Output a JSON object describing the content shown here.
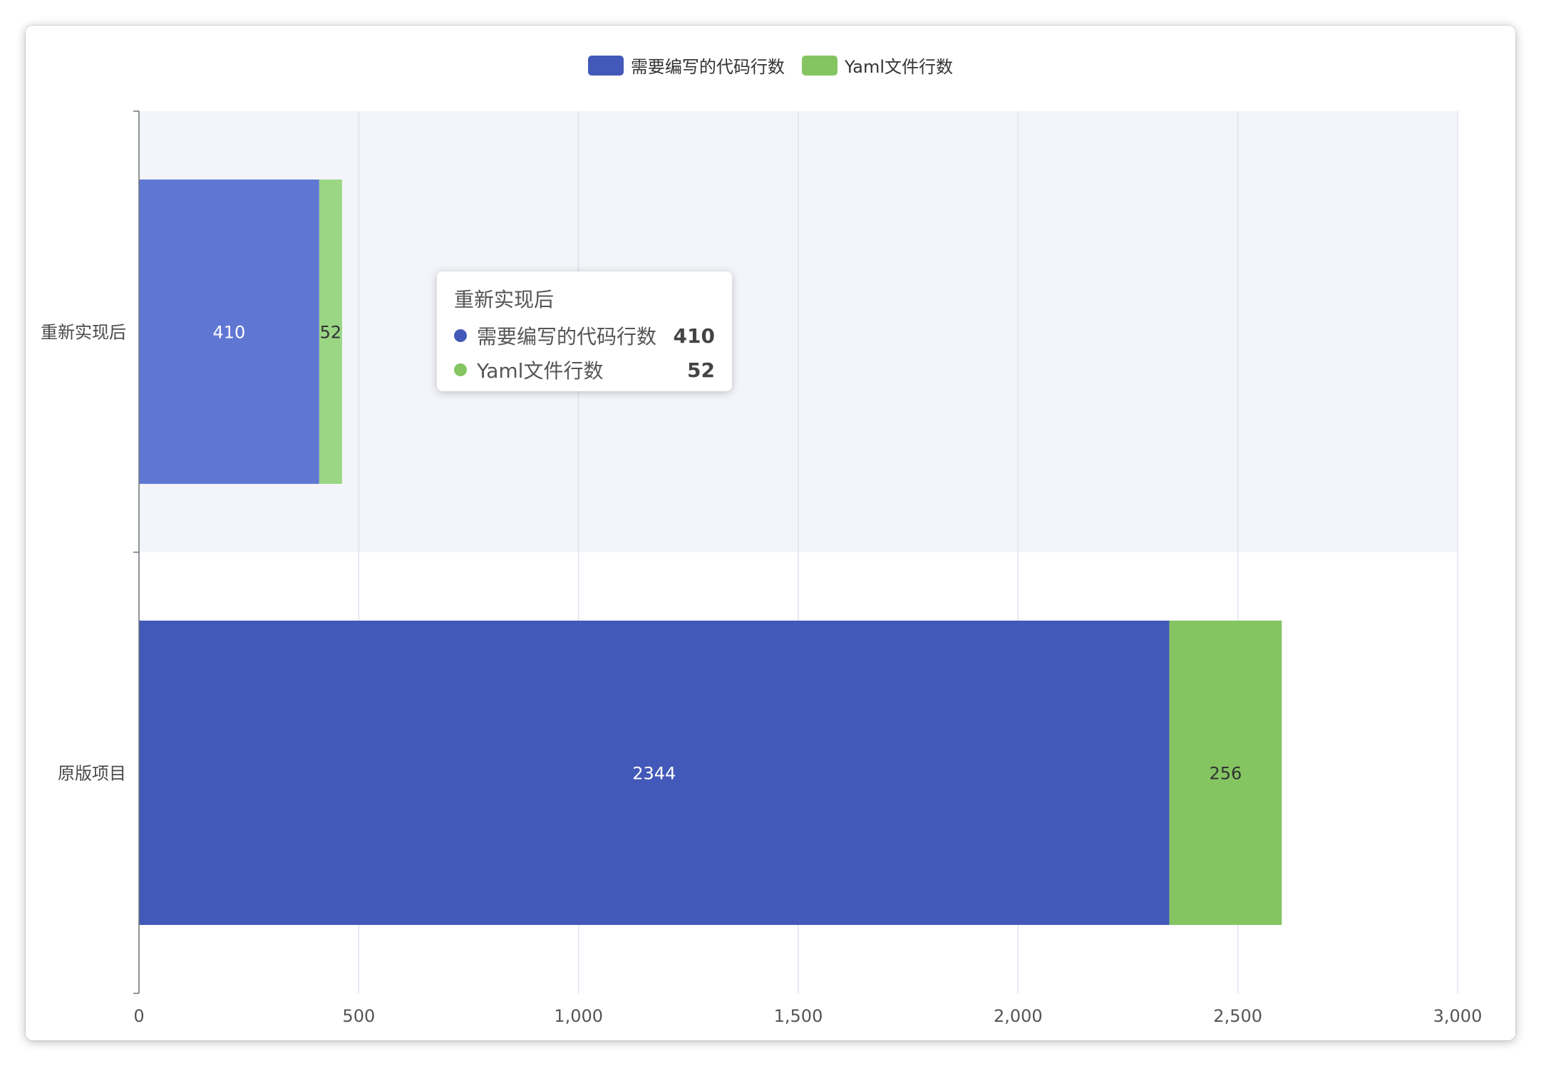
{
  "legend": [
    {
      "name": "需要编写的代码行数",
      "color": "#4359b9"
    },
    {
      "name": "Yaml文件行数",
      "color": "#84c562"
    }
  ],
  "tooltip": {
    "title": "重新实现后",
    "rows": [
      {
        "name": "需要编写的代码行数",
        "value": "410",
        "color": "#4359b9"
      },
      {
        "name": "Yaml文件行数",
        "value": "52",
        "color": "#84c562"
      }
    ]
  },
  "chart_data": {
    "type": "bar",
    "orientation": "horizontal",
    "stacked": true,
    "categories": [
      "重新实现后",
      "原版项目"
    ],
    "series": [
      {
        "name": "需要编写的代码行数",
        "values": [
          410,
          2344
        ],
        "color": "#4359b9",
        "highlight_color": "#5f77d3"
      },
      {
        "name": "Yaml文件行数",
        "values": [
          52,
          256
        ],
        "color": "#84c562",
        "highlight_color": "#9bd685"
      }
    ],
    "highlighted_category": "重新实现后",
    "xlim": [
      0,
      3000
    ],
    "x_ticks": [
      0,
      500,
      1000,
      1500,
      2000,
      2500,
      3000
    ],
    "x_tick_labels": [
      "0",
      "500",
      "1,000",
      "1,500",
      "2,000",
      "2,500",
      "3,000"
    ],
    "grid": true,
    "legend_position": "top-center",
    "title": "",
    "xlabel": "",
    "ylabel": ""
  }
}
